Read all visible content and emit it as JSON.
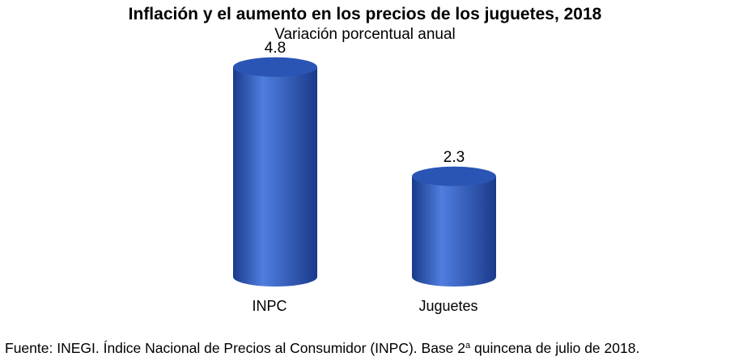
{
  "title": "Inflación y el aumento en los precios de los juguetes, 2018",
  "subtitle": "Variación porcentual anual",
  "chart_data": {
    "type": "bar",
    "categories": [
      "INPC",
      "Juguetes"
    ],
    "values": [
      4.8,
      2.3
    ],
    "value_labels": [
      "4.8",
      "2.3"
    ],
    "title": "Inflación y el aumento en los precios de los juguetes, 2018",
    "subtitle": "Variación porcentual anual",
    "bar_style": "cylinder",
    "axes_visible": false,
    "grid": false,
    "colors": {
      "bar": "#2f5bb8",
      "bar_dark": "#1a3a8a",
      "bar_light": "#4f7ee0",
      "top": "#2a55b4"
    }
  },
  "source": {
    "text_before": "Fuente: INEGI. Índice Nacional de Precios al Consumidor (INPC). Base 2",
    "superscript": "a",
    "text_after": " quincena de julio de 2018."
  }
}
